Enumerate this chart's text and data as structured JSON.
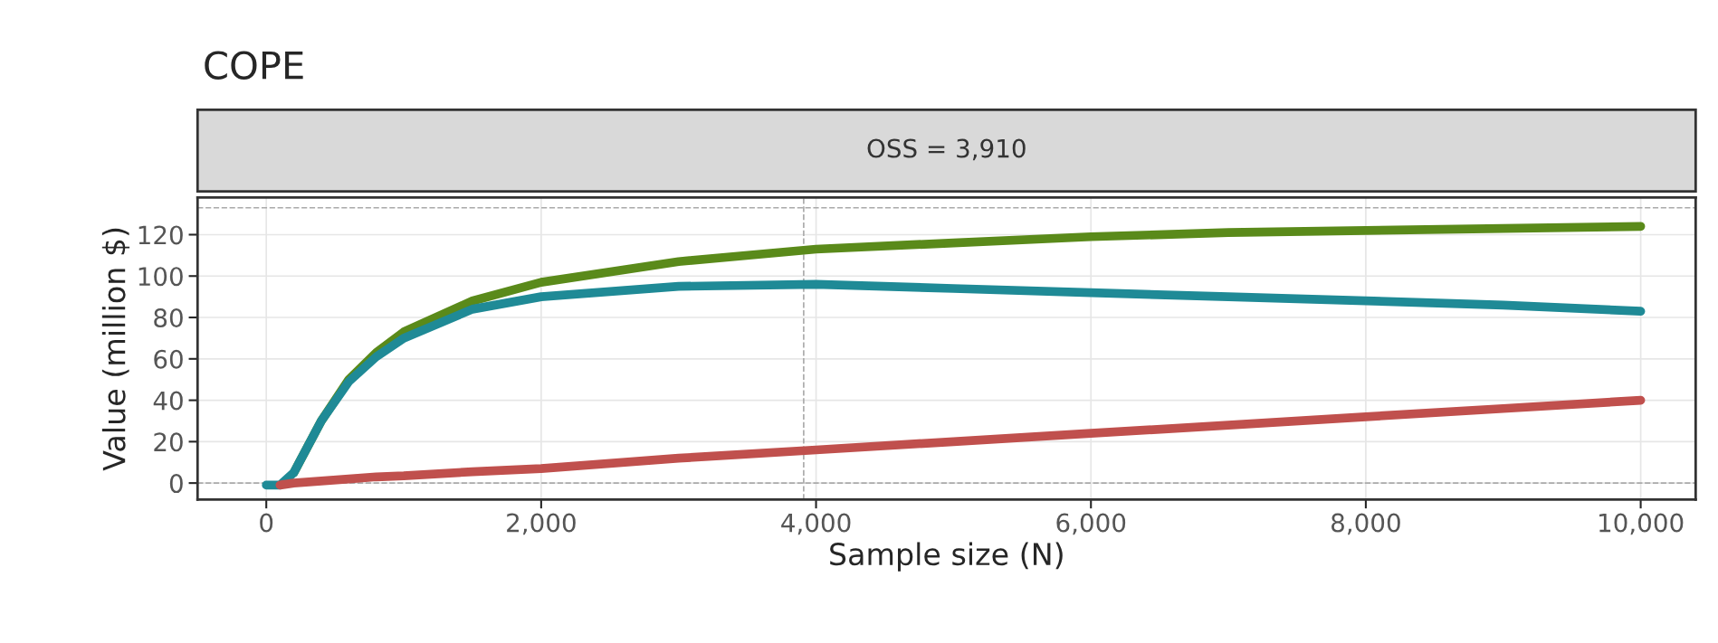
{
  "chart_data": {
    "type": "line",
    "title": "COPE",
    "subtitle": "OSS = 3,910",
    "xlabel": "Sample size (N)",
    "ylabel": "Value (million $)",
    "x": [
      0,
      100,
      200,
      400,
      600,
      800,
      1000,
      1500,
      2000,
      3000,
      4000,
      5000,
      6000,
      7000,
      8000,
      9000,
      10000
    ],
    "series": [
      {
        "color": "#5a8a1a",
        "values": [
          null,
          null,
          5,
          30,
          50,
          63,
          73,
          88,
          97,
          107,
          113,
          116,
          119,
          121,
          122,
          123,
          124
        ]
      },
      {
        "color": "#1f8a96",
        "values": [
          -1,
          -1,
          5,
          30,
          49,
          61,
          70,
          84,
          90,
          95,
          96,
          94,
          92,
          90,
          88,
          86,
          83
        ]
      },
      {
        "color": "#c0504d",
        "values": [
          null,
          -1,
          0,
          1,
          2,
          3,
          3.5,
          5.5,
          7,
          12,
          16,
          20,
          24,
          28,
          32,
          36,
          40
        ]
      }
    ],
    "xlim": [
      -500,
      10400
    ],
    "ylim": [
      -8,
      138
    ],
    "xticks": [
      {
        "value": 0,
        "label": "0"
      },
      {
        "value": 2000,
        "label": "2,000"
      },
      {
        "value": 4000,
        "label": "4,000"
      },
      {
        "value": 6000,
        "label": "6,000"
      },
      {
        "value": 8000,
        "label": "8,000"
      },
      {
        "value": 10000,
        "label": "10,000"
      }
    ],
    "yticks": [
      0,
      20,
      40,
      60,
      80,
      100,
      120
    ],
    "ref_lines": [
      {
        "axis": "y",
        "value": 0,
        "line_style": "dashed",
        "color": "#aaaaaa"
      },
      {
        "axis": "y",
        "value": 133,
        "line_style": "dashed",
        "color": "#aaaaaa"
      },
      {
        "axis": "x",
        "value": 3910,
        "line_style": "dashed",
        "color": "#aaaaaa"
      }
    ],
    "grid": true,
    "marker": "none",
    "line_style": "solid"
  }
}
